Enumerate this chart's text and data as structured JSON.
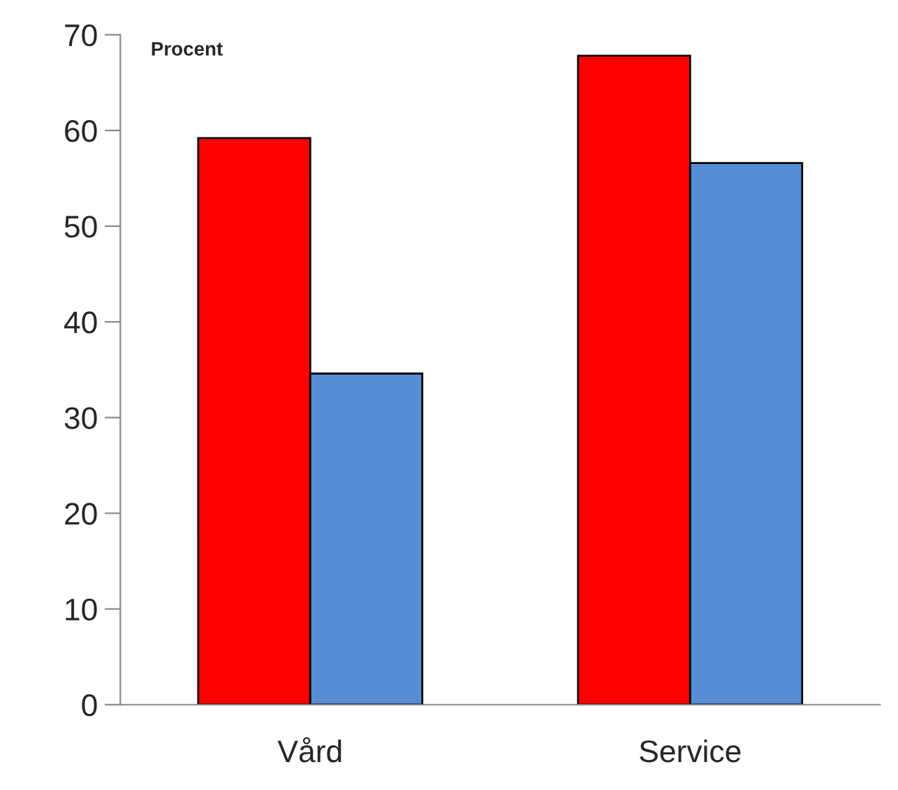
{
  "chart_data": {
    "type": "bar",
    "ylabel": "Procent",
    "categories": [
      "Vård",
      "Service"
    ],
    "series": [
      {
        "color": "#ff0000",
        "values": [
          59.2,
          67.8
        ]
      },
      {
        "color": "#558ed5",
        "values": [
          34.6,
          56.6
        ]
      }
    ],
    "ylim": [
      0,
      70
    ],
    "yticks": [
      0,
      10,
      20,
      30,
      40,
      50,
      60,
      70
    ],
    "grid": false,
    "legend": false
  }
}
